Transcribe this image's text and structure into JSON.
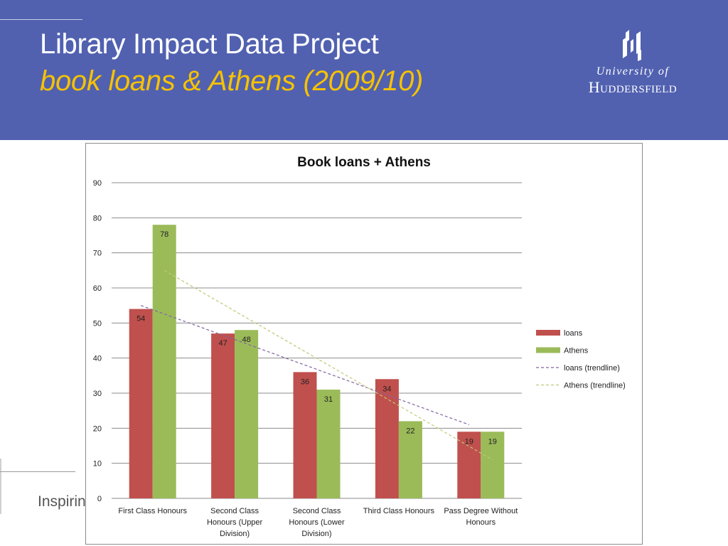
{
  "header": {
    "title": "Library Impact Data Project",
    "subtitle": "book loans & Athens (2009/10)",
    "logo_line1": "University of",
    "logo_line2": "Huddersfield"
  },
  "footer": {
    "text": "Inspiring"
  },
  "colors": {
    "banner": "#5161b0",
    "subtitle": "#f6c200",
    "loans": "#c0504d",
    "athens": "#9bbb59"
  },
  "chart_data": {
    "type": "bar",
    "title": "Book loans + Athens",
    "categories": [
      [
        "First Class Honours"
      ],
      [
        "Second Class",
        "Honours (Upper",
        "Division)"
      ],
      [
        "Second Class",
        "Honours (Lower",
        "Division)"
      ],
      [
        "Third Class Honours"
      ],
      [
        "Pass Degree Without",
        "Honours"
      ]
    ],
    "series": [
      {
        "name": "loans",
        "values": [
          54,
          47,
          36,
          34,
          19
        ],
        "color": "#c0504d"
      },
      {
        "name": "Athens",
        "values": [
          78,
          48,
          31,
          22,
          19
        ],
        "color": "#9bbb59"
      }
    ],
    "trendlines": [
      {
        "name": "loans (trendline)",
        "series": "loans",
        "color": "#8064a2",
        "start": 55,
        "end": 21
      },
      {
        "name": "Athens (trendline)",
        "series": "Athens",
        "color": "#c3c97a",
        "start": 65,
        "end": 11
      }
    ],
    "ylim": [
      0,
      90
    ],
    "yticks": [
      0,
      10,
      20,
      30,
      40,
      50,
      60,
      70,
      80,
      90
    ],
    "grid": true,
    "legend": "right"
  }
}
